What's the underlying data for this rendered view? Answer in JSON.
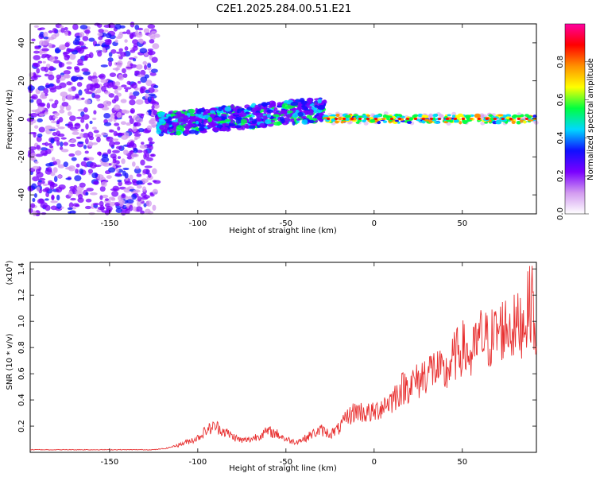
{
  "title": "C2E1.2025.284.00.51.E21",
  "spectrogram": {
    "type": "heatmap",
    "xlabel": "Height of straight line (km)",
    "ylabel": "Frequency (Hz)",
    "xlim": [
      -195,
      92
    ],
    "ylim": [
      -50,
      50
    ],
    "xticks": [
      -150,
      -100,
      -50,
      0,
      50
    ],
    "yticks": [
      -40,
      -20,
      0,
      20,
      40
    ],
    "description": [
      {
        "x_range": [
          -195,
          -123
        ],
        "freq_range": [
          -50,
          50
        ],
        "intensity": 0.25
      },
      {
        "x_range": [
          -123,
          -28
        ],
        "freq_center": [
          -3,
          5
        ],
        "freq_halfwidth": 6,
        "intensity": 0.35
      },
      {
        "x_range": [
          -28,
          92
        ],
        "freq_center": 0,
        "freq_halfwidth": 2,
        "intensity": 0.75
      }
    ]
  },
  "colorbar": {
    "label": "Normalized spectral amplitude",
    "ticks": [
      "0.0",
      "0.2",
      "0.4",
      "0.6",
      "0.8"
    ],
    "range": [
      0,
      1
    ],
    "colors": [
      "#ffffff",
      "#d29af0",
      "#7a00ff",
      "#1010ff",
      "#00d8ff",
      "#00ff40",
      "#ffff00",
      "#ff9000",
      "#ff0000",
      "#ff00a0"
    ]
  },
  "chart_data": {
    "type": "line",
    "title": "C2E1.2025.284.00.51.E21",
    "xlabel": "Height of straight line (km)",
    "ylabel": "SNR (10 * v/v)",
    "scale_label": "(x10",
    "scale_exp": "4",
    "scale_close": ")",
    "xlim": [
      -195,
      92
    ],
    "ylim": [
      0,
      1.45
    ],
    "xticks": [
      -150,
      -100,
      -50,
      0,
      50
    ],
    "yticks": [
      "0.2",
      "0.4",
      "0.6",
      "0.8",
      "1.0",
      "1.2",
      "1.4"
    ],
    "ytick_values": [
      0.2,
      0.4,
      0.6,
      0.8,
      1.0,
      1.2,
      1.4
    ],
    "series": [
      {
        "name": "SNR",
        "color": "#e83030",
        "x": [
          -195,
          -180,
          -160,
          -140,
          -125,
          -118,
          -110,
          -100,
          -95,
          -90,
          -85,
          -80,
          -75,
          -70,
          -65,
          -60,
          -55,
          -50,
          -45,
          -40,
          -35,
          -30,
          -25,
          -20,
          -15,
          -10,
          -5,
          0,
          5,
          10,
          15,
          20,
          25,
          30,
          35,
          40,
          45,
          50,
          55,
          60,
          65,
          70,
          75,
          80,
          85,
          90,
          92
        ],
        "values": [
          0.02,
          0.02,
          0.02,
          0.02,
          0.02,
          0.03,
          0.06,
          0.11,
          0.17,
          0.2,
          0.16,
          0.12,
          0.09,
          0.1,
          0.13,
          0.16,
          0.14,
          0.1,
          0.08,
          0.1,
          0.14,
          0.17,
          0.14,
          0.18,
          0.27,
          0.32,
          0.3,
          0.3,
          0.36,
          0.4,
          0.48,
          0.52,
          0.54,
          0.62,
          0.64,
          0.58,
          0.72,
          0.8,
          0.72,
          0.88,
          0.85,
          0.92,
          0.96,
          0.95,
          1.0,
          1.2,
          0.65
        ]
      }
    ]
  }
}
